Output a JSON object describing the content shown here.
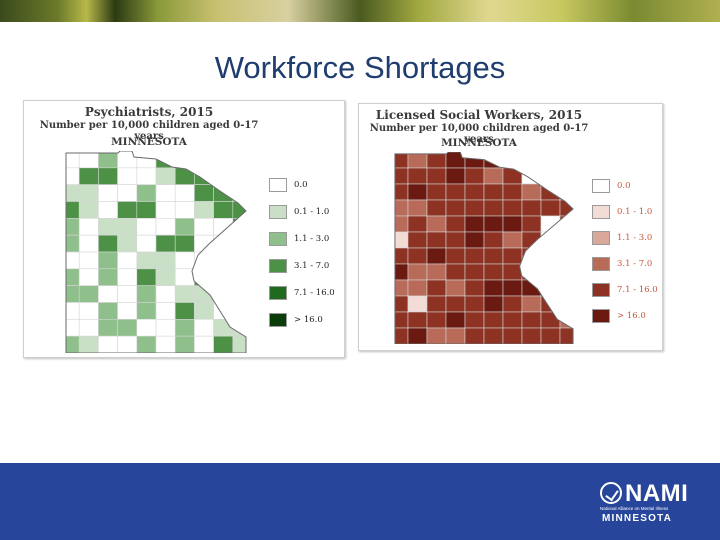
{
  "slide": {
    "title": "Workforce Shortages"
  },
  "maps": [
    {
      "title": "Psychiatrists, 2015",
      "subtitle": "Number per 10,000 children aged 0-17 years",
      "region": "MINNESOTA",
      "legend": [
        {
          "label": "0.0",
          "color": "#ffffff"
        },
        {
          "label": "0.1 - 1.0",
          "color": "#c9e0c6"
        },
        {
          "label": "1.1 - 3.0",
          "color": "#8fbf8b"
        },
        {
          "label": "3.1 - 7.0",
          "color": "#4d9147"
        },
        {
          "label": "7.1 - 16.0",
          "color": "#1f6a1f"
        },
        {
          "label": "> 16.0",
          "color": "#0b3d0b"
        }
      ],
      "label_color": "#222222"
    },
    {
      "title": "Licensed Social Workers, 2015",
      "subtitle": "Number per 10,000 children aged 0-17 years",
      "region": "MINNESOTA",
      "legend": [
        {
          "label": "0.0",
          "color": "#ffffff"
        },
        {
          "label": "0.1 - 1.0",
          "color": "#f3dcd6"
        },
        {
          "label": "1.1 - 3.0",
          "color": "#d9a89a"
        },
        {
          "label": "3.1 - 7.0",
          "color": "#b86b58"
        },
        {
          "label": "7.1 - 16.0",
          "color": "#8e3324"
        },
        {
          "label": "> 16.0",
          "color": "#6a1a10"
        }
      ],
      "label_color": "#c2573f"
    }
  ],
  "logo": {
    "name": "NAMI",
    "tagline": "National Alliance on Mental Illness",
    "state": "MINNESOTA"
  }
}
